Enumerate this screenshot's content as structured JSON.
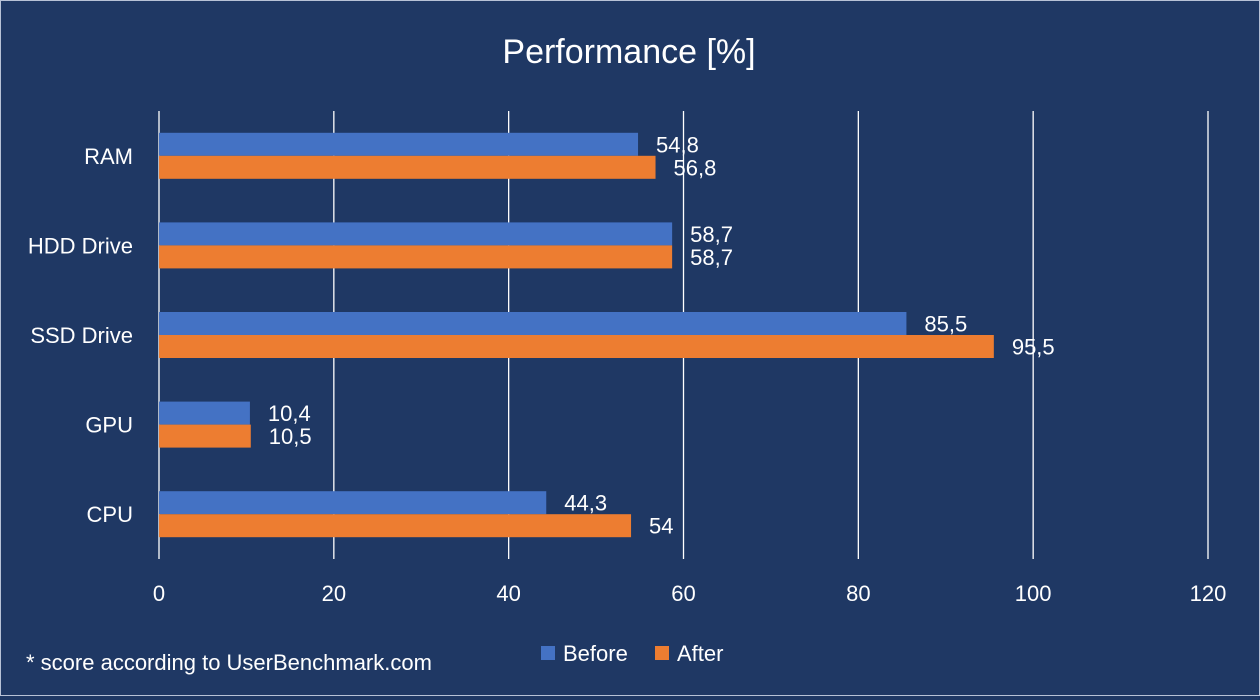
{
  "chart_data": {
    "type": "bar",
    "orientation": "horizontal",
    "title": "Performance [%]",
    "categories": [
      "RAM",
      "HDD Drive",
      "SSD Drive",
      "GPU",
      "CPU"
    ],
    "series": [
      {
        "name": "Before",
        "color": "#4472c4",
        "values": [
          54.8,
          58.7,
          85.5,
          10.4,
          44.3
        ],
        "labels": [
          "54,8",
          "58,7",
          "85,5",
          "10,4",
          "44,3"
        ]
      },
      {
        "name": "After",
        "color": "#ed7d31",
        "values": [
          56.8,
          58.7,
          95.5,
          10.5,
          54
        ],
        "labels": [
          "56,8",
          "58,7",
          "95,5",
          "10,5",
          "54"
        ]
      }
    ],
    "xlim": [
      0,
      120
    ],
    "xticks": [
      0,
      20,
      40,
      60,
      80,
      100,
      120
    ],
    "xtick_labels": [
      "0",
      "20",
      "40",
      "60",
      "80",
      "100",
      "120"
    ],
    "grid": true,
    "legend_position": "bottom"
  },
  "footnote": "* score according to UserBenchmark.com",
  "colors": {
    "background": "#1f3864",
    "gridline": "#ffffff",
    "text": "#ffffff"
  }
}
